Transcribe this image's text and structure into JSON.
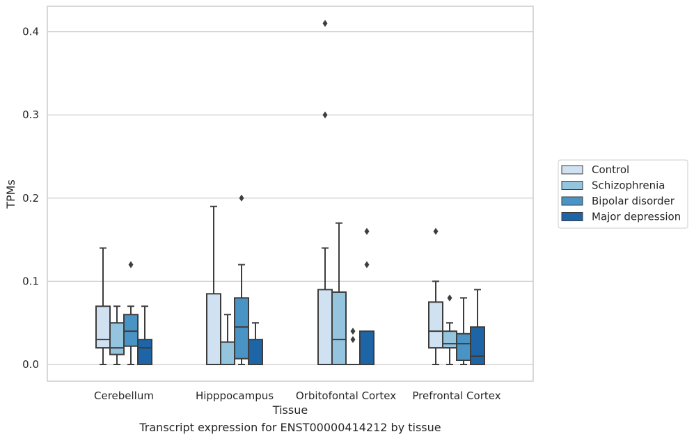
{
  "caption": "Transcript expression for ENST00000414212 by tissue",
  "colors": {
    "grid": "#cccccc",
    "frame": "#cccccc",
    "line": "#3d3d3d",
    "series": [
      "#d0e1f1",
      "#95c4de",
      "#4a93c5",
      "#1e65a8"
    ]
  },
  "chart_data": {
    "type": "box",
    "title": "",
    "xlabel": "Tissue",
    "ylabel": "TPMs",
    "ylim": [
      -0.02,
      0.43
    ],
    "yticks": [
      0.0,
      0.1,
      0.2,
      0.3,
      0.4
    ],
    "ytick_labels": [
      "0.0",
      "0.1",
      "0.2",
      "0.3",
      "0.4"
    ],
    "grid": "y",
    "legend": "right",
    "categories": [
      "Cerebellum",
      "Hipppocampus",
      "Orbitofontal Cortex",
      "Prefrontal Cortex"
    ],
    "series": [
      {
        "name": "Control",
        "boxes": [
          {
            "whislo": 0.0,
            "q1": 0.02,
            "med": 0.03,
            "q3": 0.07,
            "whishi": 0.14,
            "fliers": []
          },
          {
            "whislo": 0.0,
            "q1": 0.0,
            "med": 0.0,
            "q3": 0.085,
            "whishi": 0.19,
            "fliers": []
          },
          {
            "whislo": 0.0,
            "q1": 0.0,
            "med": 0.0,
            "q3": 0.09,
            "whishi": 0.14,
            "fliers": [
              0.3,
              0.41
            ]
          },
          {
            "whislo": 0.0,
            "q1": 0.02,
            "med": 0.04,
            "q3": 0.075,
            "whishi": 0.1,
            "fliers": [
              0.16
            ]
          }
        ]
      },
      {
        "name": "Schizophrenia",
        "boxes": [
          {
            "whislo": 0.0,
            "q1": 0.012,
            "med": 0.02,
            "q3": 0.05,
            "whishi": 0.07,
            "fliers": []
          },
          {
            "whislo": 0.0,
            "q1": 0.0,
            "med": 0.0,
            "q3": 0.027,
            "whishi": 0.06,
            "fliers": []
          },
          {
            "whislo": 0.0,
            "q1": 0.0,
            "med": 0.03,
            "q3": 0.087,
            "whishi": 0.17,
            "fliers": []
          },
          {
            "whislo": 0.0,
            "q1": 0.02,
            "med": 0.025,
            "q3": 0.04,
            "whishi": 0.05,
            "fliers": [
              0.08
            ]
          }
        ]
      },
      {
        "name": "Bipolar disorder",
        "boxes": [
          {
            "whislo": 0.0,
            "q1": 0.022,
            "med": 0.04,
            "q3": 0.06,
            "whishi": 0.07,
            "fliers": [
              0.12
            ]
          },
          {
            "whislo": 0.0,
            "q1": 0.007,
            "med": 0.045,
            "q3": 0.08,
            "whishi": 0.12,
            "fliers": [
              0.2
            ]
          },
          {
            "whislo": 0.0,
            "q1": 0.0,
            "med": 0.0,
            "q3": 0.0,
            "whishi": 0.0,
            "fliers": [
              0.03,
              0.04
            ]
          },
          {
            "whislo": 0.0,
            "q1": 0.005,
            "med": 0.025,
            "q3": 0.037,
            "whishi": 0.08,
            "fliers": []
          }
        ]
      },
      {
        "name": "Major depression",
        "boxes": [
          {
            "whislo": 0.0,
            "q1": 0.0,
            "med": 0.02,
            "q3": 0.03,
            "whishi": 0.07,
            "fliers": []
          },
          {
            "whislo": 0.0,
            "q1": 0.0,
            "med": 0.0,
            "q3": 0.03,
            "whishi": 0.05,
            "fliers": []
          },
          {
            "whislo": 0.0,
            "q1": 0.0,
            "med": 0.0,
            "q3": 0.04,
            "whishi": 0.04,
            "fliers": [
              0.12,
              0.16
            ]
          },
          {
            "whislo": 0.0,
            "q1": 0.0,
            "med": 0.01,
            "q3": 0.045,
            "whishi": 0.09,
            "fliers": []
          }
        ]
      }
    ]
  }
}
